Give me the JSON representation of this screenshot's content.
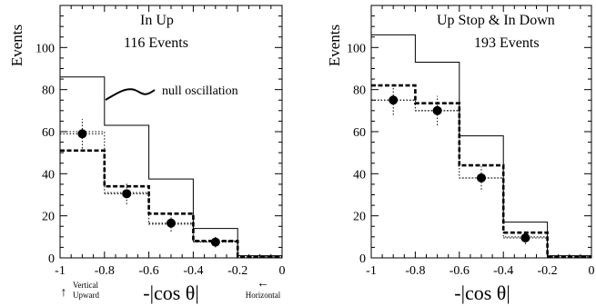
{
  "chart_data": [
    {
      "type": "line",
      "title": "In Up",
      "subtitle": "116 Events",
      "xlabel": "-|cos θ|",
      "ylabel": "Events",
      "xlim": [
        -1,
        0
      ],
      "ylim": [
        0,
        120
      ],
      "x_ticks": [
        "-1",
        "-0.8",
        "-0.6",
        "-0.4",
        "-0.2",
        "0"
      ],
      "y_ticks": [
        "0",
        "20",
        "40",
        "60",
        "80",
        "100"
      ],
      "bin_edges": [
        -1,
        -0.8,
        -0.6,
        -0.4,
        -0.2,
        0
      ],
      "series": [
        {
          "name": "null oscillation",
          "style": "solid-histogram",
          "values": [
            86,
            63,
            37.5,
            14,
            1
          ]
        },
        {
          "style": "dashed-histogram",
          "values": [
            51,
            34,
            21,
            8,
            0.5
          ]
        },
        {
          "style": "dotted-histogram",
          "values": [
            60,
            31,
            16,
            8,
            0.5
          ]
        },
        {
          "style": "data-points",
          "points": [
            {
              "x": -0.9,
              "y": 59,
              "yerr": 7
            },
            {
              "x": -0.7,
              "y": 30.5,
              "yerr": 5
            },
            {
              "x": -0.5,
              "y": 16.5,
              "yerr": 4
            },
            {
              "x": -0.3,
              "y": 7.5,
              "yerr": 2.5
            }
          ]
        }
      ],
      "annotations": {
        "null_label": "null oscillation",
        "vertical_line1": "Vertical",
        "vertical_line2": "Upward",
        "horizontal": "Horizontal",
        "up_arrow": "↑",
        "left_arrow": "←"
      }
    },
    {
      "type": "line",
      "title": "Up Stop & In Down",
      "subtitle": "193 Events",
      "xlabel": "-|cos θ|",
      "ylabel": "Events",
      "xlim": [
        -1,
        0
      ],
      "ylim": [
        0,
        120
      ],
      "x_ticks": [
        "-1",
        "-0.8",
        "-0.6",
        "-0.4",
        "-0.2",
        "0"
      ],
      "y_ticks": [
        "0",
        "20",
        "40",
        "60",
        "80",
        "100"
      ],
      "bin_edges": [
        -1,
        -0.8,
        -0.6,
        -0.4,
        -0.2,
        0
      ],
      "series": [
        {
          "style": "solid-histogram",
          "values": [
            106,
            93,
            58,
            17,
            1
          ]
        },
        {
          "style": "dashed-histogram",
          "values": [
            82,
            73.5,
            44,
            12,
            0.5
          ]
        },
        {
          "style": "dotted-histogram",
          "values": [
            75,
            70,
            38,
            10,
            0.5
          ]
        },
        {
          "style": "data-points",
          "points": [
            {
              "x": -0.9,
              "y": 75,
              "yerr": 7
            },
            {
              "x": -0.7,
              "y": 70,
              "yerr": 7
            },
            {
              "x": -0.5,
              "y": 38,
              "yerr": 5.5
            },
            {
              "x": -0.3,
              "y": 9.5,
              "yerr": 3
            }
          ]
        }
      ]
    }
  ]
}
